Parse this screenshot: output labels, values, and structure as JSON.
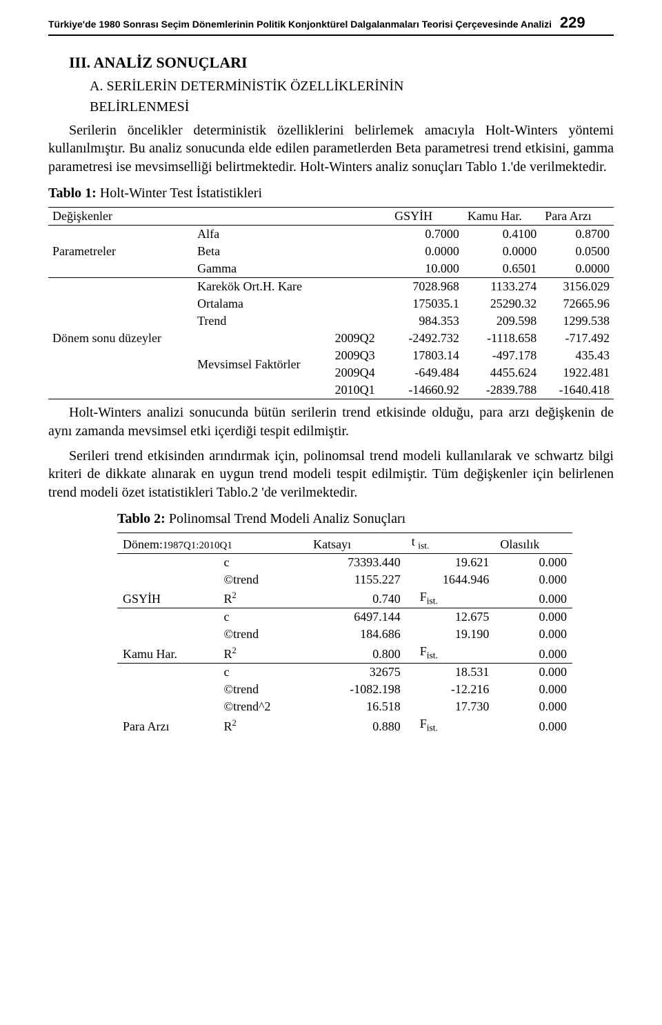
{
  "header": {
    "running_title": "Türkiye'de 1980 Sonrası Seçim Dönemlerinin Politik Konjonktürel Dalgalanmaları Teorisi Çerçevesinde Analizi",
    "page_number": "229"
  },
  "section": {
    "title": "III. ANALİZ SONUÇLARI",
    "sub_a": "A. SERİLERİN DETERMİNİSTİK ÖZELLİKLERİNİN",
    "sub_a_line2": "BELİRLENMESİ"
  },
  "para": {
    "p1": "Serilerin öncelikler deterministik özelliklerini belirlemek amacıyla Holt-Winters yöntemi kullanılmıştır. Bu analiz sonucunda elde edilen parametlerden Beta parametresi trend etkisini, gamma parametresi ise mevsimselliği belirtmektedir. Holt-Winters analiz sonuçları Tablo 1.'de verilmektedir.",
    "p2": "Holt-Winters analizi sonucunda bütün serilerin trend etkisinde olduğu, para arzı değişkenin de aynı zamanda mevsimsel etki içerdiği tespit edilmiştir.",
    "p3": "Serileri trend etkisinden arındırmak için, polinomsal trend modeli kullanılarak ve schwartz bilgi kriteri de dikkate alınarak en uygun trend modeli tespit edilmiştir. Tüm değişkenler için belirlenen trend modeli özet istatistikleri Tablo.2 'de verilmektedir."
  },
  "table1": {
    "title_bold": "Tablo 1:",
    "title_rest": " Holt-Winter Test İstatistikleri",
    "headers": {
      "c0": "Değişkenler",
      "c1": "GSYİH",
      "c2": "Kamu Har.",
      "c3": "Para Arzı"
    },
    "groups": {
      "params": "Parametreler",
      "levels": "Dönem sonu düzeyler",
      "seasonal": "Mevsimsel Faktörler"
    },
    "rows": [
      {
        "label": "Alfa",
        "sub": "",
        "gsyih": "0.7000",
        "kamu": "0.4100",
        "para": "0.8700"
      },
      {
        "label": "Beta",
        "sub": "",
        "gsyih": "0.0000",
        "kamu": "0.0000",
        "para": "0.0500"
      },
      {
        "label": "Gamma",
        "sub": "",
        "gsyih": "10.000",
        "kamu": "0.6501",
        "para": "0.0000"
      },
      {
        "label": "Karekök Ort.H. Kare",
        "sub": "",
        "gsyih": "7028.968",
        "kamu": "1133.274",
        "para": "3156.029"
      },
      {
        "label": "Ortalama",
        "sub": "",
        "gsyih": "175035.1",
        "kamu": "25290.32",
        "para": "72665.96"
      },
      {
        "label": "Trend",
        "sub": "",
        "gsyih": "984.353",
        "kamu": "209.598",
        "para": "1299.538"
      },
      {
        "label": "",
        "sub": "2009Q2",
        "gsyih": "-2492.732",
        "kamu": "-1118.658",
        "para": "-717.492"
      },
      {
        "label": "",
        "sub": "2009Q3",
        "gsyih": "17803.14",
        "kamu": "-497.178",
        "para": "435.43"
      },
      {
        "label": "",
        "sub": "2009Q4",
        "gsyih": "-649.484",
        "kamu": "4455.624",
        "para": "1922.481"
      },
      {
        "label": "",
        "sub": "2010Q1",
        "gsyih": "-14660.92",
        "kamu": "-2839.788",
        "para": "-1640.418"
      }
    ]
  },
  "table2": {
    "title_bold": "Tablo 2:",
    "title_rest": " Polinomsal Trend Modeli Analiz Sonuçları",
    "headers": {
      "period": "Dönem:",
      "period_val": "1987Q1:2010Q1",
      "coef": "Katsayı",
      "t": "t ",
      "t_sub": "ist.",
      "prob": "Olasılık"
    },
    "groups": {
      "g1": "GSYİH",
      "g2": "Kamu Har.",
      "g3": "Para Arzı"
    },
    "labels": {
      "c": "c",
      "ctrend": "©trend",
      "ctrend2": "©trend^2",
      "r2": "R",
      "r2_sup": "2",
      "F": "F",
      "F_sub": "ist."
    },
    "gsyih": {
      "c": {
        "coef": "73393.440",
        "t": "19.621",
        "p": "0.000"
      },
      "ct": {
        "coef": "1155.227",
        "t": "1644.946",
        "p": "0.000"
      },
      "r2": {
        "coef": "0.740",
        "t_label": "F",
        "p": "0.000"
      }
    },
    "kamu": {
      "c": {
        "coef": "6497.144",
        "t": "12.675",
        "p": "0.000"
      },
      "ct": {
        "coef": "184.686",
        "t": "19.190",
        "p": "0.000"
      },
      "r2": {
        "coef": "0.800",
        "t_label": "F",
        "p": "0.000"
      }
    },
    "para": {
      "c": {
        "coef": "32675",
        "t": "18.531",
        "p": "0.000"
      },
      "ct": {
        "coef": "-1082.198",
        "t": "-12.216",
        "p": "0.000"
      },
      "ct2": {
        "coef": "16.518",
        "t": "17.730",
        "p": "0.000"
      },
      "r2": {
        "coef": "0.880",
        "t_label": "F",
        "p": "0.000"
      }
    }
  }
}
